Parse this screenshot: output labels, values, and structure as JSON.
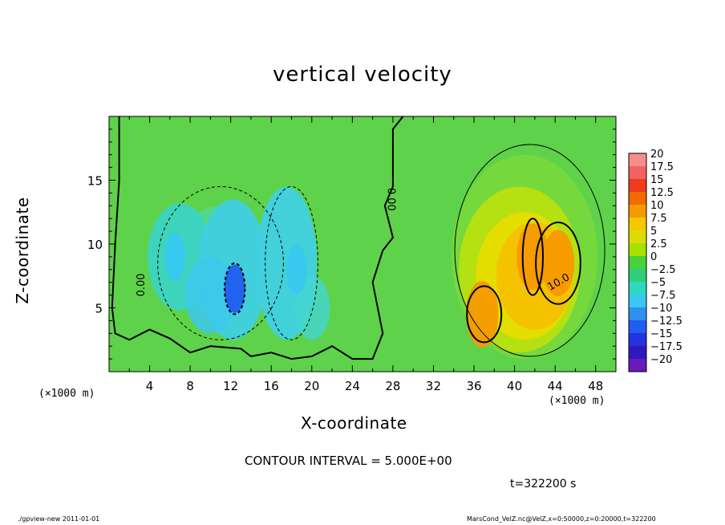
{
  "figure": {
    "title": "vertical velocity",
    "contour_interval": "CONTOUR INTERVAL = 5.000E+00",
    "time_label": "t=322200 s",
    "footer_left": "./gpview-new  2011-01-01",
    "footer_right": "MarsCond_VelZ.nc@VelZ,x=0:50000,z=0:20000,t=322200"
  },
  "chart_data": {
    "type": "heatmap",
    "title": "vertical velocity",
    "xlabel": "X-coordinate",
    "ylabel": "Z-coordinate",
    "x_unit_label": "(×1000 m)",
    "y_unit_label": "(×1000 m)",
    "xlim": [
      0,
      50
    ],
    "ylim": [
      0,
      20
    ],
    "x_ticks": [
      4,
      8,
      12,
      16,
      20,
      24,
      28,
      32,
      36,
      40,
      44,
      48
    ],
    "y_ticks": [
      5,
      10,
      15
    ],
    "contour_labels": [
      "0.00",
      "0.00",
      "10.0"
    ],
    "colorbar": {
      "levels": [
        "20",
        "17.5",
        "15",
        "12.5",
        "10",
        "7.5",
        "5",
        "2.5",
        "0",
        "−2.5",
        "−5",
        "−7.5",
        "−10",
        "−12.5",
        "−15",
        "−17.5",
        "−20"
      ],
      "colors": [
        "#f58d8d",
        "#f36262",
        "#ef3c1c",
        "#f16b00",
        "#f59a00",
        "#f5c800",
        "#dcdc00",
        "#a8e000",
        "#46d23c",
        "#2ecf78",
        "#30d8c0",
        "#38c8f0",
        "#3090f0",
        "#1f5ef0",
        "#2432e0",
        "#3018c0",
        "#6a1ab8"
      ]
    },
    "features": [
      {
        "kind": "downdraft",
        "x": 12.4,
        "z": 6.5,
        "value": -11
      },
      {
        "kind": "downdraft",
        "x": 6.5,
        "z": 9,
        "value": -7
      },
      {
        "kind": "downdraft",
        "x": 18.5,
        "z": 8,
        "value": -6
      },
      {
        "kind": "updraft",
        "x": 44.3,
        "z": 8.5,
        "value": 12
      },
      {
        "kind": "updraft",
        "x": 41.8,
        "z": 9,
        "value": 11
      },
      {
        "kind": "updraft",
        "x": 36.8,
        "z": 4.5,
        "value": 10
      }
    ]
  }
}
